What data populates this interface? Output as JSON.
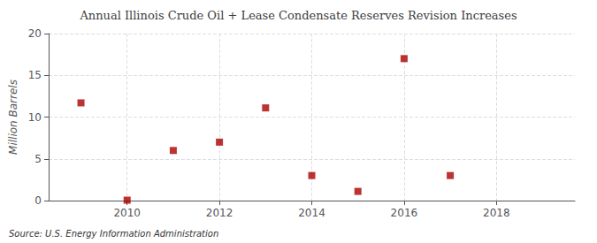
{
  "chart_data": {
    "type": "scatter",
    "title": "Annual Illinois Crude Oil + Lease Condensate Reserves Revision Increases",
    "ylabel": "Million Barrels",
    "annotation": "Source: U.S. Energy Information Administration",
    "x": [
      2009,
      2010,
      2011,
      2012,
      2013,
      2014,
      2015,
      2016,
      2017
    ],
    "values": [
      11.7,
      0.05,
      6.0,
      7.0,
      11.1,
      3.0,
      1.1,
      17.0,
      3.0
    ],
    "color": "#aa0000",
    "marker": "square",
    "xlim": [
      2008.3,
      2019.7
    ],
    "xticks": [
      2010,
      2012,
      2014,
      2016,
      2018
    ],
    "ylim": [
      0,
      20
    ],
    "yticks": [
      0,
      5,
      10,
      15,
      20
    ],
    "grid": true
  }
}
